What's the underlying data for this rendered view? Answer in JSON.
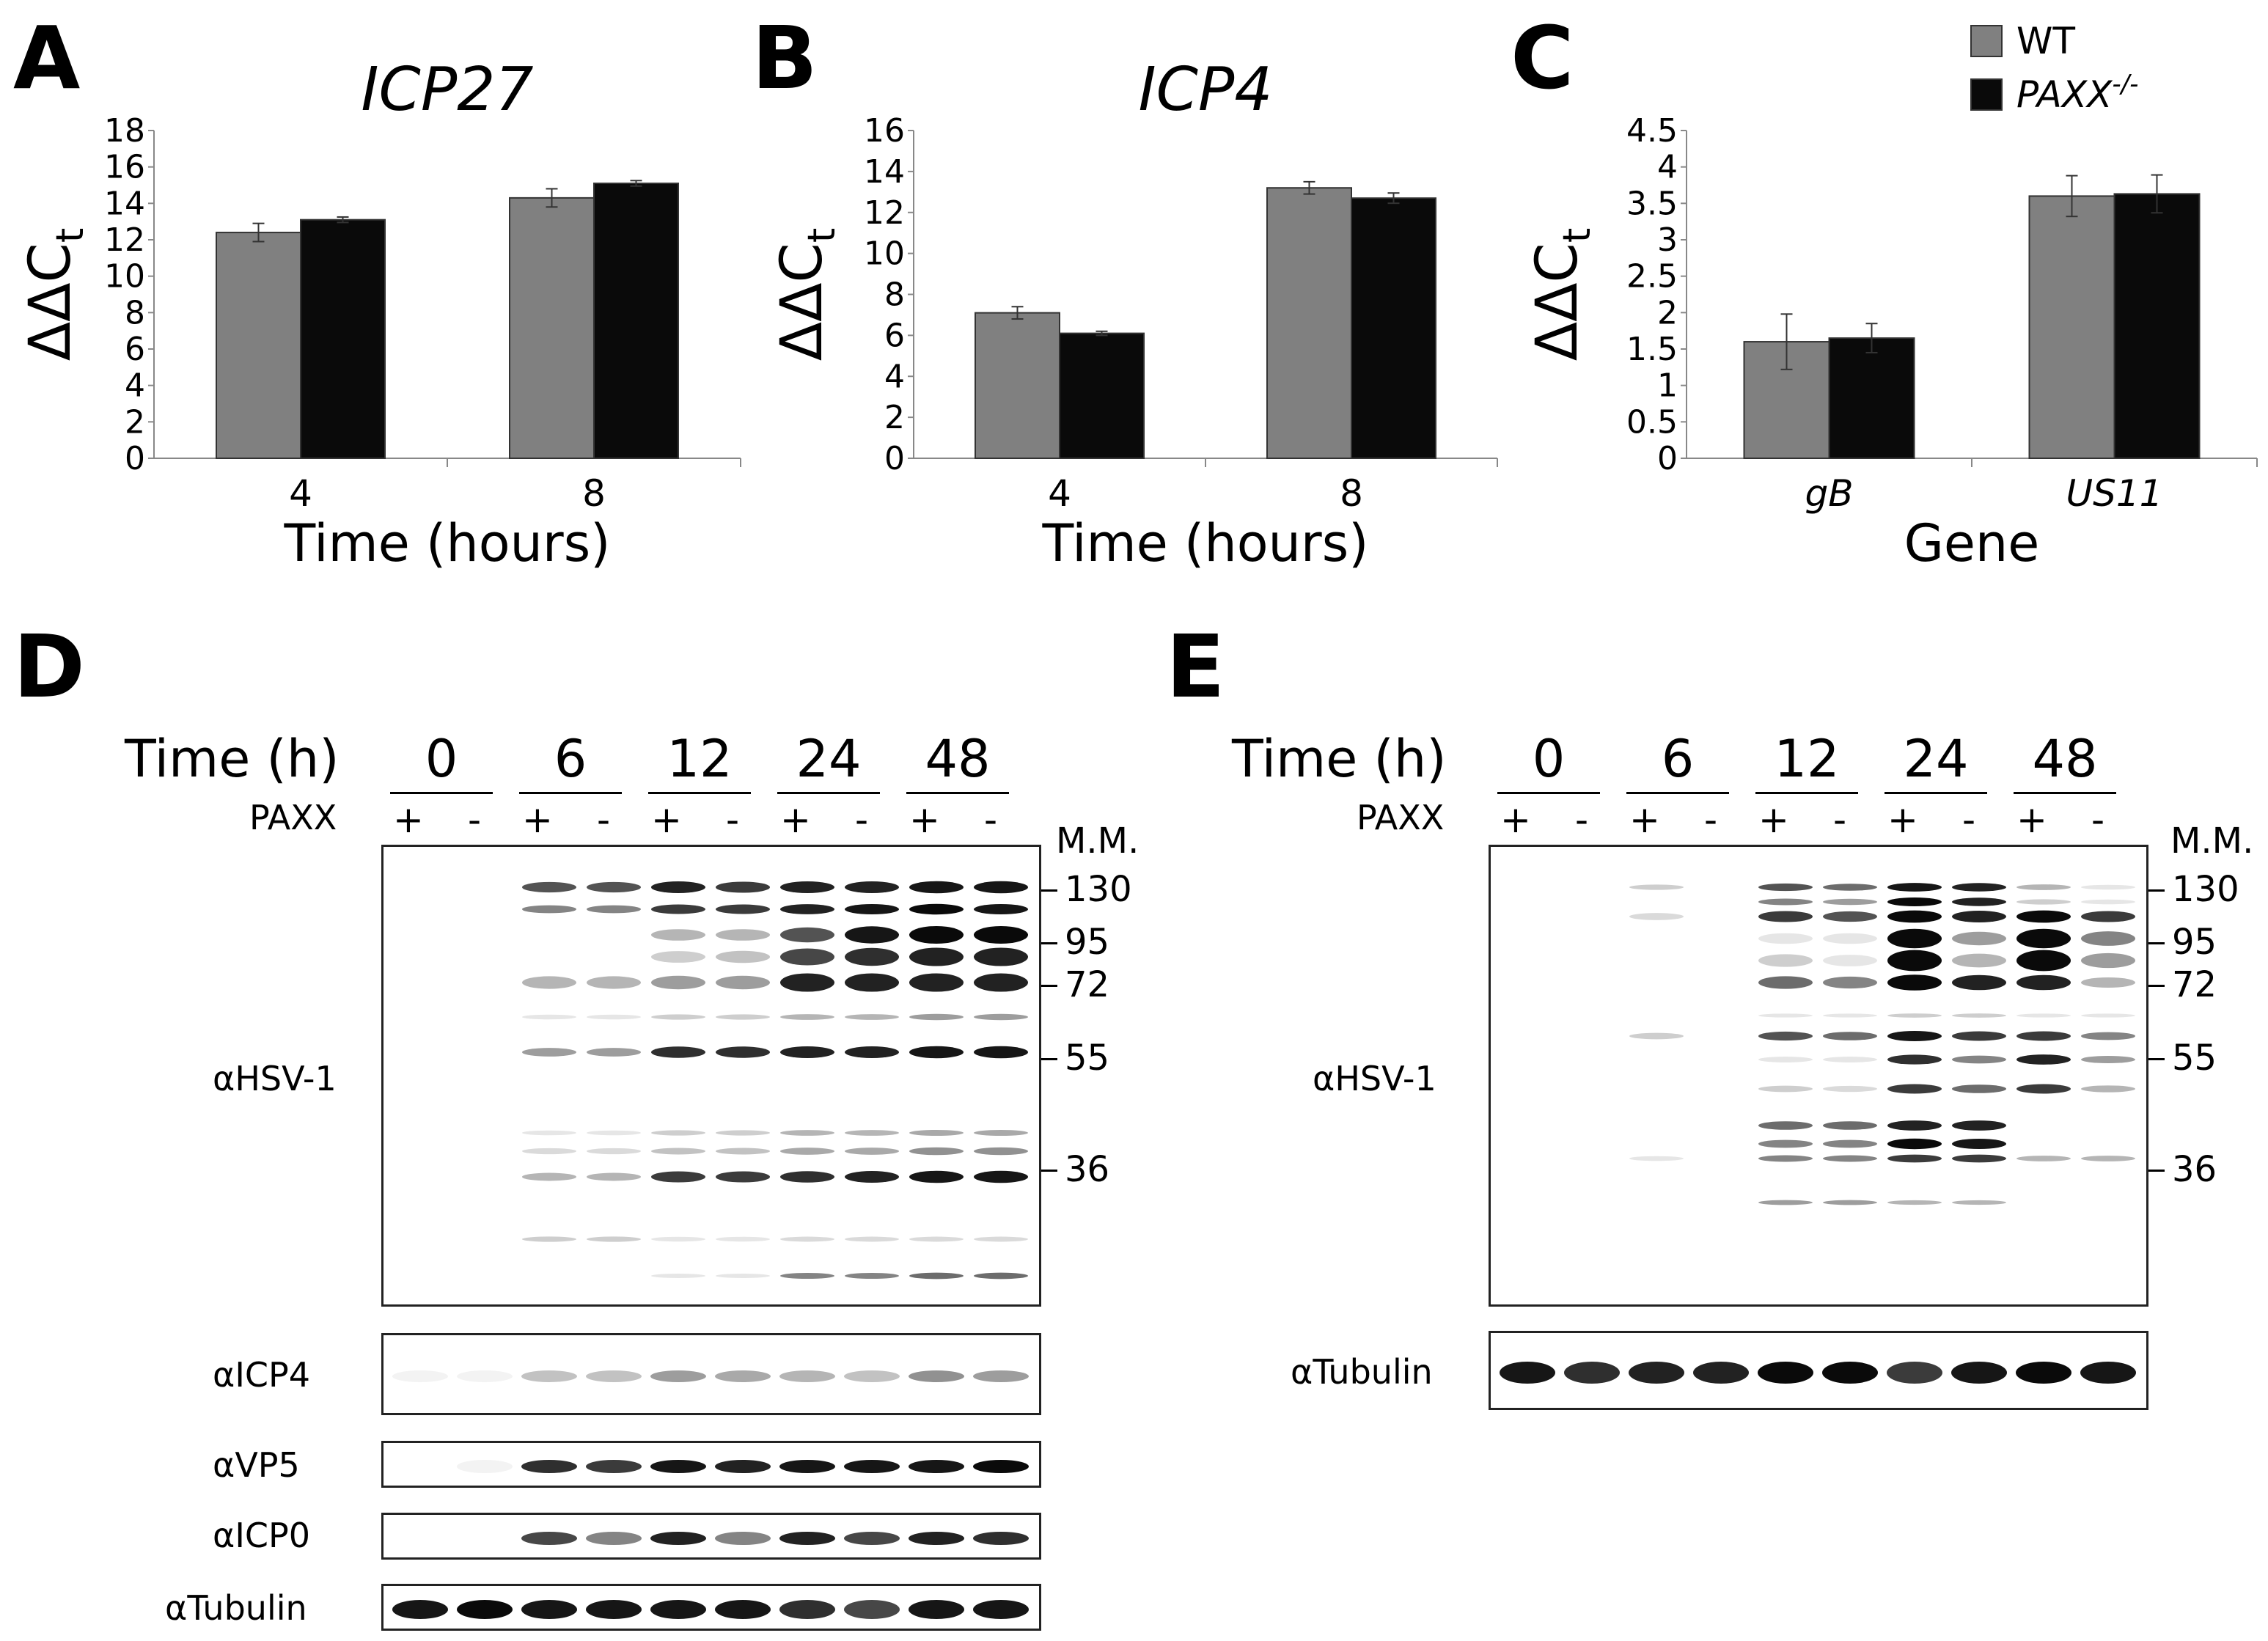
{
  "panels": {
    "A": "A",
    "B": "B",
    "C": "C",
    "D": "D",
    "E": "E"
  },
  "colors": {
    "wt": "#808080",
    "paxx": "#0a0a0a"
  },
  "chart_data": [
    {
      "type": "bar",
      "title": "ICP27",
      "ylabel": "ΔΔC",
      "ylabel_sub": "t",
      "xlabel": "Time (hours)",
      "categories": [
        "4",
        "8"
      ],
      "ylim": [
        0,
        18
      ],
      "yticks": [
        "0",
        "2",
        "4",
        "6",
        "8",
        "10",
        "12",
        "14",
        "16",
        "18"
      ],
      "series": [
        {
          "name": "WT",
          "values": [
            12.4,
            14.3
          ],
          "errors": [
            0.5,
            0.5
          ]
        },
        {
          "name": "PAXX-/-",
          "values": [
            13.1,
            15.1
          ],
          "errors": [
            0.15,
            0.15
          ]
        }
      ]
    },
    {
      "type": "bar",
      "title": "ICP4",
      "ylabel": "ΔΔC",
      "ylabel_sub": "t",
      "xlabel": "Time (hours)",
      "categories": [
        "4",
        "8"
      ],
      "ylim": [
        0,
        16
      ],
      "yticks": [
        "0",
        "2",
        "4",
        "6",
        "8",
        "10",
        "12",
        "14",
        "16"
      ],
      "series": [
        {
          "name": "WT",
          "values": [
            7.1,
            13.2
          ],
          "errors": [
            0.3,
            0.3
          ]
        },
        {
          "name": "PAXX-/-",
          "values": [
            6.1,
            12.7
          ],
          "errors": [
            0.1,
            0.25
          ]
        }
      ]
    },
    {
      "type": "bar",
      "title": "",
      "ylabel": "ΔΔC",
      "ylabel_sub": "t",
      "xlabel": "Gene",
      "categories": [
        "gB",
        "US11"
      ],
      "ylim": [
        0,
        4.5
      ],
      "yticks": [
        "0",
        "0.5",
        "1",
        "1.5",
        "2",
        "2.5",
        "3",
        "3.5",
        "4",
        "4.5"
      ],
      "series": [
        {
          "name": "WT",
          "values": [
            1.6,
            3.6
          ],
          "errors": [
            0.38,
            0.28
          ]
        },
        {
          "name": "PAXX-/-",
          "values": [
            1.65,
            3.63
          ],
          "errors": [
            0.2,
            0.26
          ]
        }
      ],
      "legend": {
        "placement": "top-right",
        "wt": "WT",
        "paxx_main": "PAXX",
        "paxx_sup": "-/-"
      }
    }
  ],
  "blots": {
    "time_label": "Time (h)",
    "paxx_label": "PAXX",
    "timepoints": [
      "0",
      "6",
      "12",
      "24",
      "48"
    ],
    "signs": [
      "+",
      "-"
    ],
    "mm_header": "M.M.",
    "markers": [
      "130",
      "95",
      "72",
      "55",
      "36"
    ],
    "D": {
      "main_label": "αHSV-1",
      "strips": [
        "αICP4",
        "αVP5",
        "αICP0",
        "αTubulin"
      ]
    },
    "E": {
      "main_label": "αHSV-1",
      "strips": [
        "αTubulin"
      ]
    }
  }
}
